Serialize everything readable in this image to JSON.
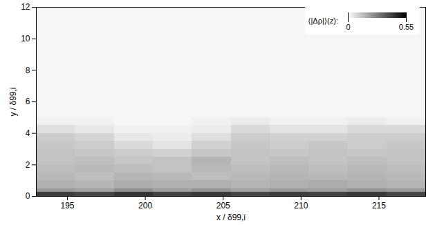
{
  "chart_data": {
    "type": "heatmap",
    "xlabel": "x / δ99,i",
    "ylabel": "y / δ99,i",
    "xlim": [
      193,
      218
    ],
    "xticks": [
      195,
      200,
      205,
      210,
      215
    ],
    "ylim": [
      0,
      12
    ],
    "yticks": [
      0,
      2,
      4,
      6,
      8,
      10,
      12
    ],
    "cells": {
      "x_edges": [
        193,
        195.5,
        198,
        200.5,
        203,
        205.5,
        208,
        210.5,
        213,
        215.5,
        218
      ],
      "y_edges": [
        0,
        0.25,
        0.5,
        1,
        1.5,
        2,
        2.5,
        3,
        3.5,
        4,
        4.5,
        5,
        12
      ],
      "values": [
        [
          0.42,
          0.4,
          0.44,
          0.41,
          0.43,
          0.4,
          0.42,
          0.41,
          0.43,
          0.4
        ],
        [
          0.22,
          0.2,
          0.24,
          0.21,
          0.23,
          0.2,
          0.22,
          0.21,
          0.23,
          0.22
        ],
        [
          0.17,
          0.16,
          0.18,
          0.17,
          0.17,
          0.16,
          0.17,
          0.18,
          0.17,
          0.16
        ],
        [
          0.15,
          0.14,
          0.16,
          0.15,
          0.14,
          0.15,
          0.16,
          0.15,
          0.16,
          0.15
        ],
        [
          0.14,
          0.15,
          0.14,
          0.13,
          0.15,
          0.14,
          0.15,
          0.14,
          0.15,
          0.14
        ],
        [
          0.13,
          0.14,
          0.12,
          0.13,
          0.16,
          0.13,
          0.14,
          0.13,
          0.14,
          0.13
        ],
        [
          0.13,
          0.12,
          0.11,
          0.1,
          0.12,
          0.13,
          0.12,
          0.13,
          0.12,
          0.13
        ],
        [
          0.12,
          0.11,
          0.08,
          0.06,
          0.1,
          0.12,
          0.11,
          0.12,
          0.11,
          0.12
        ],
        [
          0.11,
          0.09,
          0.05,
          0.04,
          0.07,
          0.11,
          0.1,
          0.1,
          0.11,
          0.11
        ],
        [
          0.07,
          0.05,
          0.03,
          0.03,
          0.04,
          0.08,
          0.06,
          0.06,
          0.08,
          0.08
        ],
        [
          0.03,
          0.03,
          0.02,
          0.02,
          0.03,
          0.04,
          0.03,
          0.03,
          0.04,
          0.03
        ],
        [
          0.02,
          0.02,
          0.02,
          0.02,
          0.02,
          0.02,
          0.02,
          0.02,
          0.02,
          0.02
        ]
      ]
    },
    "colorbar": {
      "label": "⟨|Δρ|⟩(z):",
      "range": [
        0,
        0.55
      ],
      "ticks": [
        0,
        0.55
      ]
    },
    "legend": "top-right"
  }
}
